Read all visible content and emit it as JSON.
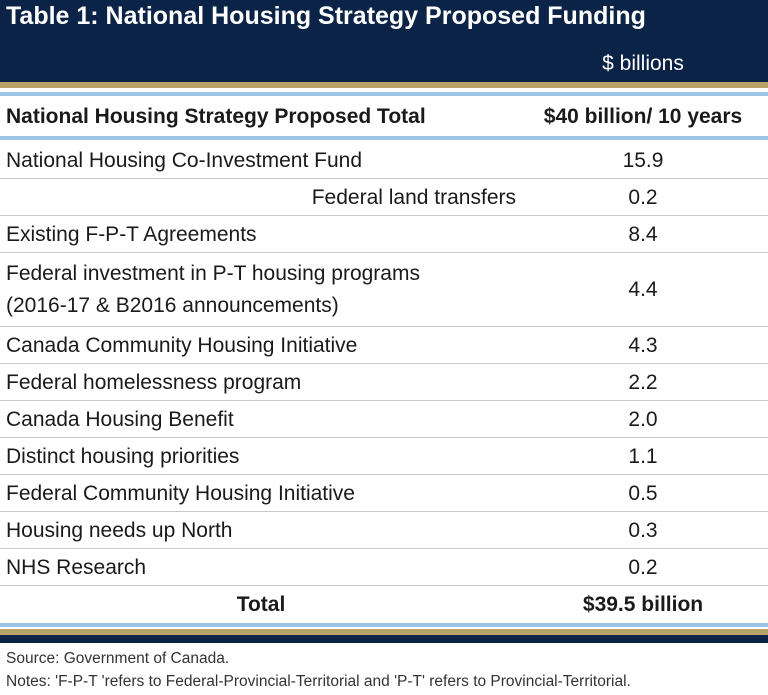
{
  "header": {
    "title": "Table 1: National Housing Strategy Proposed Funding",
    "unit": "$ billions"
  },
  "table": {
    "columns": [
      "National Housing Strategy Proposed Total",
      "$40 billion/ 10 years"
    ],
    "rows": [
      [
        "National Housing Co-Investment Fund",
        "15.9"
      ],
      [
        "Federal land transfers",
        "0.2"
      ],
      [
        "Existing F-P-T Agreements",
        "8.4"
      ],
      [
        "Federal investment in P-T housing programs\n(2016-17 & B2016 announcements)",
        "4.4"
      ],
      [
        "Canada Community Housing Initiative",
        "4.3"
      ],
      [
        "Federal homelessness program",
        "2.2"
      ],
      [
        "Canada Housing Benefit",
        "2.0"
      ],
      [
        "Distinct housing priorities",
        "1.1"
      ],
      [
        "Federal Community Housing Initiative",
        "0.5"
      ],
      [
        "Housing needs up North",
        "0.3"
      ],
      [
        "NHS Research",
        "0.2"
      ]
    ],
    "total": [
      "Total",
      "$39.5 billion"
    ]
  },
  "notes": [
    "Source: Government of Canada.",
    "Notes: 'F-P-T 'refers to Federal-Provincial-Territorial and 'P-T' refers to Provincial-Territorial."
  ]
}
